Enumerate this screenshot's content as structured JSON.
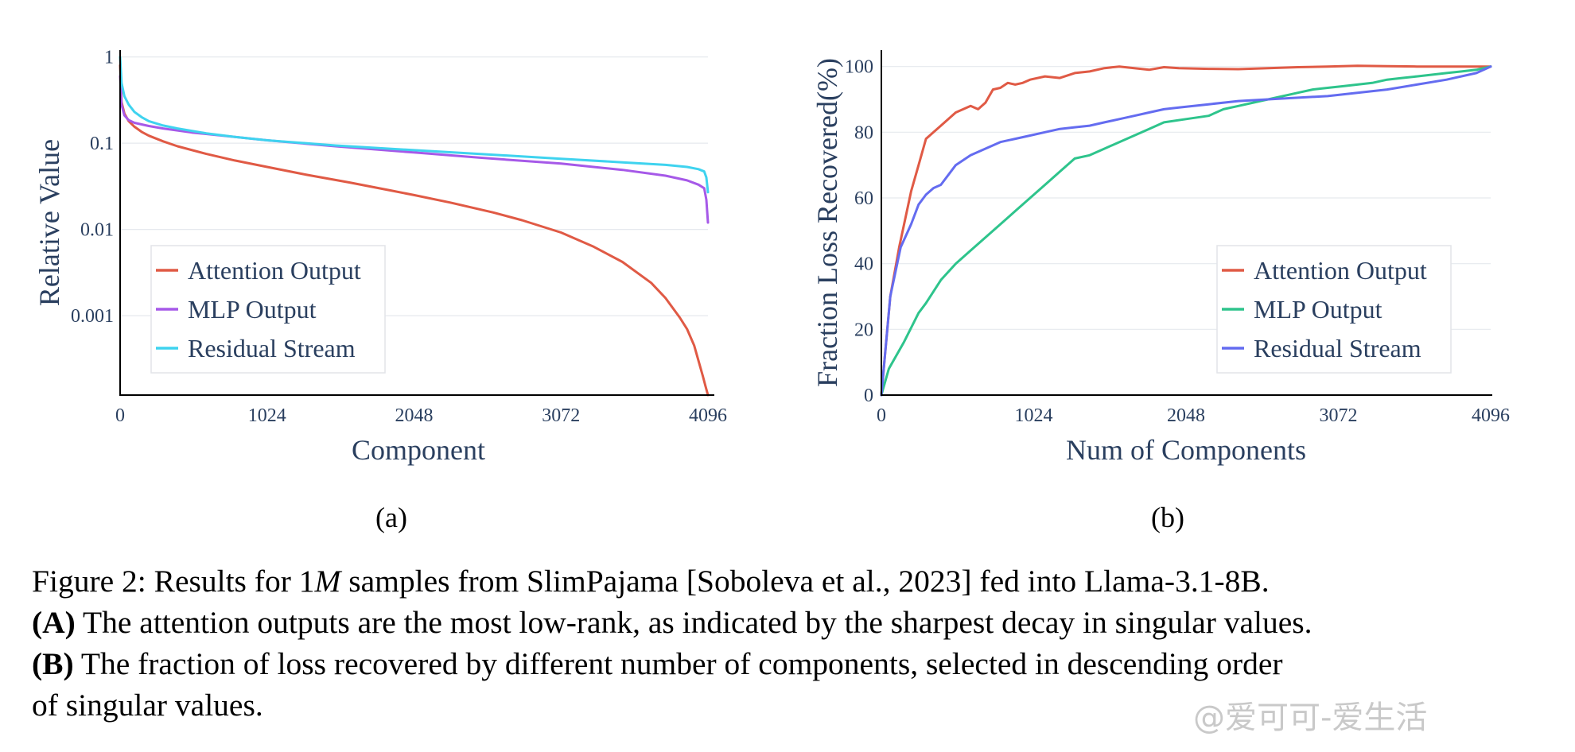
{
  "chart_data": [
    {
      "type": "line",
      "panel_label": "(a)",
      "xlabel": "Component",
      "ylabel": "Relative Value",
      "x_ticks": [
        "0",
        "1024",
        "2048",
        "3072",
        "4096"
      ],
      "xlim": [
        0,
        4096
      ],
      "y_scale": "log",
      "y_ticks": [
        "1",
        "0.1",
        "0.01",
        "0.001"
      ],
      "y_tick_values": [
        1,
        0.1,
        0.01,
        0.001
      ],
      "ylim": [
        0.00012,
        1.2
      ],
      "grid": true,
      "legend_position": "bottom-left",
      "series": [
        {
          "name": "Attention Output",
          "color": "#e05a45",
          "x": [
            0,
            10,
            30,
            60,
            100,
            150,
            200,
            300,
            400,
            600,
            800,
            1024,
            1300,
            1600,
            1900,
            2048,
            2300,
            2600,
            2800,
            3072,
            3300,
            3500,
            3700,
            3800,
            3900,
            3950,
            4000,
            4030,
            4060,
            4080,
            4096
          ],
          "y": [
            0.8,
            0.3,
            0.22,
            0.18,
            0.155,
            0.135,
            0.122,
            0.105,
            0.092,
            0.075,
            0.063,
            0.053,
            0.043,
            0.035,
            0.028,
            0.025,
            0.0205,
            0.0157,
            0.0128,
            0.0092,
            0.0063,
            0.0042,
            0.0024,
            0.0016,
            0.00095,
            0.0007,
            0.00045,
            0.0003,
            0.0002,
            0.00015,
            0.00012
          ]
        },
        {
          "name": "MLP Output",
          "color": "#a659e8",
          "x": [
            0,
            10,
            30,
            60,
            100,
            200,
            300,
            500,
            800,
            1024,
            1500,
            2048,
            2500,
            3072,
            3500,
            3800,
            3950,
            4030,
            4070,
            4085,
            4096
          ],
          "y": [
            0.6,
            0.28,
            0.21,
            0.185,
            0.172,
            0.158,
            0.148,
            0.133,
            0.118,
            0.108,
            0.092,
            0.078,
            0.068,
            0.058,
            0.049,
            0.042,
            0.037,
            0.033,
            0.03,
            0.022,
            0.012
          ]
        },
        {
          "name": "Residual Stream",
          "color": "#3fd3ef",
          "x": [
            0,
            10,
            30,
            60,
            100,
            150,
            200,
            300,
            400,
            600,
            800,
            1024,
            1500,
            2048,
            2500,
            3072,
            3500,
            3800,
            3950,
            4030,
            4070,
            4085,
            4096
          ],
          "y": [
            1.0,
            0.5,
            0.35,
            0.28,
            0.23,
            0.2,
            0.18,
            0.16,
            0.148,
            0.13,
            0.118,
            0.108,
            0.094,
            0.083,
            0.075,
            0.066,
            0.06,
            0.056,
            0.053,
            0.05,
            0.047,
            0.04,
            0.027
          ]
        }
      ]
    },
    {
      "type": "line",
      "panel_label": "(b)",
      "xlabel": "Num of Components",
      "ylabel": "Fraction Loss Recovered(%)",
      "x_ticks": [
        "0",
        "1024",
        "2048",
        "3072",
        "4096"
      ],
      "xlim": [
        0,
        4096
      ],
      "y_ticks": [
        "0",
        "20",
        "40",
        "60",
        "80",
        "100"
      ],
      "y_tick_values": [
        0,
        20,
        40,
        60,
        80,
        100
      ],
      "ylim": [
        0,
        105
      ],
      "grid": true,
      "legend_position": "bottom-right",
      "series": [
        {
          "name": "Attention Output",
          "color": "#e05a45",
          "x": [
            0,
            60,
            120,
            200,
            250,
            300,
            400,
            500,
            600,
            650,
            700,
            750,
            800,
            850,
            900,
            950,
            1000,
            1100,
            1200,
            1300,
            1400,
            1500,
            1600,
            1700,
            1800,
            1900,
            2000,
            2200,
            2400,
            2600,
            2800,
            3000,
            3200,
            3400,
            3600,
            3800,
            4096
          ],
          "y": [
            0,
            30,
            45,
            62,
            70,
            78,
            82,
            86,
            88,
            87,
            89,
            93,
            93.5,
            95,
            94.5,
            95,
            96,
            97,
            96.5,
            98,
            98.5,
            99.5,
            100,
            99.5,
            99,
            99.8,
            99.5,
            99.3,
            99.2,
            99.5,
            99.8,
            100,
            100.2,
            100.1,
            100,
            100,
            100
          ]
        },
        {
          "name": "MLP Output",
          "color": "#2ec48c",
          "x": [
            0,
            50,
            150,
            250,
            300,
            400,
            500,
            600,
            700,
            800,
            900,
            1000,
            1100,
            1200,
            1300,
            1400,
            1500,
            1600,
            1700,
            1800,
            1900,
            2048,
            2200,
            2300,
            2400,
            2500,
            2600,
            2700,
            2800,
            2900,
            3000,
            3100,
            3200,
            3300,
            3400,
            3500,
            3600,
            3700,
            3800,
            3900,
            4000,
            4096
          ],
          "y": [
            0,
            8,
            16,
            25,
            28,
            35,
            40,
            44,
            48,
            52,
            56,
            60,
            64,
            68,
            72,
            73,
            75,
            77,
            79,
            81,
            83,
            84,
            85,
            87,
            88,
            89,
            90,
            91,
            92,
            93,
            93.5,
            94,
            94.5,
            95,
            96,
            96.5,
            97,
            97.5,
            98,
            98.5,
            99,
            100
          ]
        },
        {
          "name": "Residual Stream",
          "color": "#646cf0",
          "x": [
            0,
            60,
            130,
            200,
            250,
            300,
            350,
            400,
            500,
            600,
            700,
            800,
            900,
            1000,
            1100,
            1200,
            1300,
            1400,
            1500,
            1600,
            1700,
            1800,
            1900,
            2000,
            2200,
            2400,
            2600,
            2800,
            3000,
            3200,
            3400,
            3600,
            3800,
            4000,
            4096
          ],
          "y": [
            0,
            30,
            45,
            52,
            58,
            61,
            63,
            64,
            70,
            73,
            75,
            77,
            78,
            79,
            80,
            81,
            81.5,
            82,
            83,
            84,
            85,
            86,
            87,
            87.5,
            88.5,
            89.5,
            90,
            90.5,
            91,
            92,
            93,
            94.5,
            96,
            98,
            100
          ]
        }
      ]
    }
  ],
  "caption": {
    "line1_prefix": "Figure 2: Results for 1",
    "line1_math": "M",
    "line1_suffix": " samples from SlimPajama [Soboleva et al., 2023] fed into Llama-3.1-8B.",
    "line2_label": "(A)",
    "line2_text": " The attention outputs are the most low-rank, as indicated by the sharpest decay in singular values.",
    "line3_label": "(B)",
    "line3_text": " The fraction of loss recovered by different number of components, selected in descending order",
    "line4_text": "of singular values."
  },
  "watermark": "@爱可可-爱生活"
}
